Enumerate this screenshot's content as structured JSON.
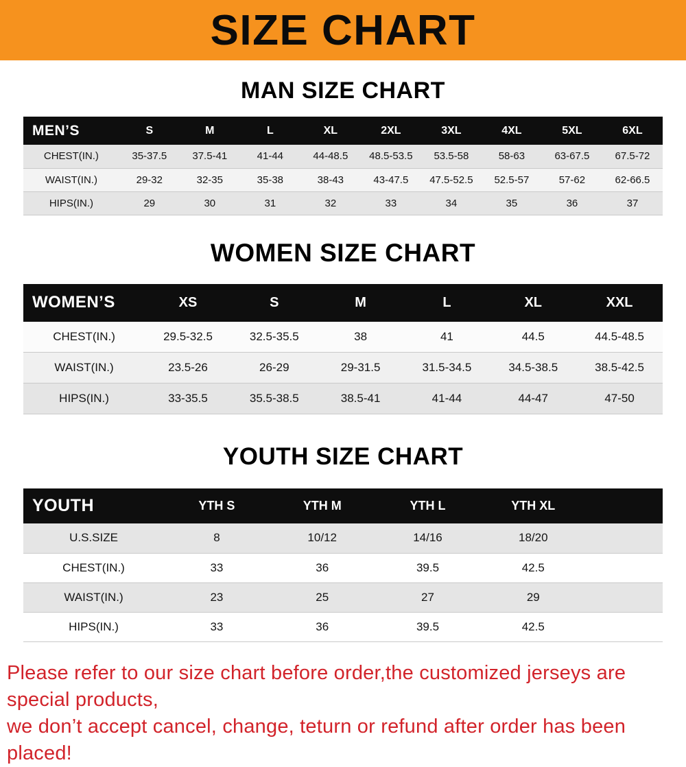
{
  "banner": {
    "title": "SIZE CHART"
  },
  "colors": {
    "banner_orange": "#f6921e",
    "header_black": "#0e0e0e",
    "row_gray": "#e5e5e5",
    "footer_red": "#d2232a"
  },
  "sections": [
    {
      "heading": "MAN SIZE CHART",
      "table": {
        "header_label": "MEN’S",
        "columns": [
          "S",
          "M",
          "L",
          "XL",
          "2XL",
          "3XL",
          "4XL",
          "5XL",
          "6XL"
        ],
        "rows": [
          {
            "label": "CHEST(IN.)",
            "values": [
              "35-37.5",
              "37.5-41",
              "41-44",
              "44-48.5",
              "48.5-53.5",
              "53.5-58",
              "58-63",
              "63-67.5",
              "67.5-72"
            ]
          },
          {
            "label": "WAIST(IN.)",
            "values": [
              "29-32",
              "32-35",
              "35-38",
              "38-43",
              "43-47.5",
              "47.5-52.5",
              "52.5-57",
              "57-62",
              "62-66.5"
            ]
          },
          {
            "label": "HIPS(IN.)",
            "values": [
              "29",
              "30",
              "31",
              "32",
              "33",
              "34",
              "35",
              "36",
              "37"
            ]
          }
        ]
      }
    },
    {
      "heading": "WOMEN SIZE CHART",
      "table": {
        "header_label": "WOMEN’S",
        "columns": [
          "XS",
          "S",
          "M",
          "L",
          "XL",
          "XXL"
        ],
        "rows": [
          {
            "label": "CHEST(IN.)",
            "values": [
              "29.5-32.5",
              "32.5-35.5",
              "38",
              "41",
              "44.5",
              "44.5-48.5"
            ]
          },
          {
            "label": "WAIST(IN.)",
            "values": [
              "23.5-26",
              "26-29",
              "29-31.5",
              "31.5-34.5",
              "34.5-38.5",
              "38.5-42.5"
            ]
          },
          {
            "label": "HIPS(IN.)",
            "values": [
              "33-35.5",
              "35.5-38.5",
              "38.5-41",
              "41-44",
              "44-47",
              "47-50"
            ]
          }
        ]
      }
    },
    {
      "heading": "YOUTH SIZE CHART",
      "table": {
        "header_label": "YOUTH",
        "columns": [
          "YTH S",
          "YTH M",
          "YTH L",
          "YTH XL"
        ],
        "rows": [
          {
            "label": "U.S.SIZE",
            "values": [
              "8",
              "10/12",
              "14/16",
              "18/20"
            ]
          },
          {
            "label": "CHEST(IN.)",
            "values": [
              "33",
              "36",
              "39.5",
              "42.5"
            ]
          },
          {
            "label": "WAIST(IN.)",
            "values": [
              "23",
              "25",
              "27",
              "29"
            ]
          },
          {
            "label": "HIPS(IN.)",
            "values": [
              "33",
              "36",
              "39.5",
              "42.5"
            ]
          }
        ]
      }
    }
  ],
  "footer": {
    "lines": [
      "Please refer to our size chart before order,the customized jerseys are special products,",
      "we don’t accept cancel, change, teturn or refund after order has been placed!"
    ]
  }
}
